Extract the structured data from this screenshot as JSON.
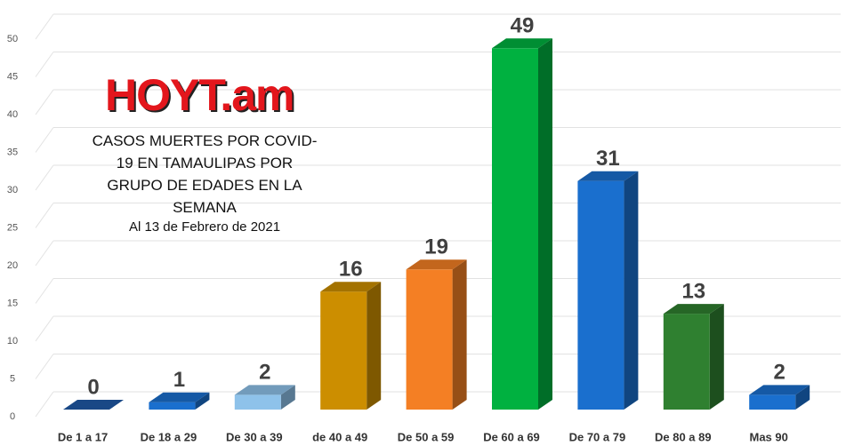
{
  "logo": "HOYT.am",
  "chart_data": {
    "type": "bar3d",
    "title": "CASOS MUERTES POR COVID-19 EN TAMAULIPAS POR GRUPO DE EDADES EN LA SEMANA",
    "subtitle": "Al 13 de Febrero de 2021",
    "categories": [
      "De 1 a 17",
      "De 18 a 29",
      "De 30 a 39",
      "de 40 a 49",
      "De 50 a 59",
      "De 60 a 69",
      "De 70 a 79",
      "De 80 a 89",
      "Mas 90"
    ],
    "values": [
      0,
      1,
      2,
      16,
      19,
      49,
      31,
      13,
      2
    ],
    "colors": [
      "#1f5aa8",
      "#1a6fce",
      "#8ec2ea",
      "#cc8e00",
      "#f47f24",
      "#00b140",
      "#1a6fce",
      "#2f8030",
      "#1a6fce"
    ],
    "ylim": [
      0,
      50
    ],
    "yticks": [
      0,
      5,
      10,
      15,
      20,
      25,
      30,
      35,
      40,
      45,
      50
    ],
    "grid": true
  }
}
